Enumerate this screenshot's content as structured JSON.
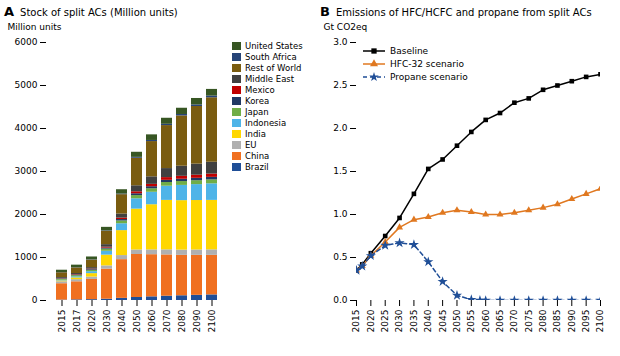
{
  "chart_data": [
    {
      "type": "bar",
      "title": "Stock of split ACs (Million units)",
      "ylabel": "Million units",
      "annotations": [
        "A"
      ],
      "stacked": true,
      "grid": false,
      "legend": "right",
      "categories": [
        "2015",
        "2017",
        "2020",
        "2030",
        "2040",
        "2050",
        "2060",
        "2070",
        "2080",
        "2090",
        "2100"
      ],
      "series": [
        {
          "name": "Brazil",
          "color": "#1f4e97",
          "values": [
            10,
            15,
            20,
            30,
            50,
            70,
            85,
            100,
            110,
            120,
            130
          ]
        },
        {
          "name": "China",
          "color": "#f07020",
          "values": [
            380,
            420,
            470,
            700,
            900,
            1000,
            980,
            960,
            940,
            930,
            920
          ]
        },
        {
          "name": "EU",
          "color": "#b0b0b0",
          "values": [
            45,
            50,
            55,
            75,
            95,
            105,
            112,
            118,
            122,
            125,
            128
          ]
        },
        {
          "name": "India",
          "color": "#ffd700",
          "values": [
            20,
            40,
            80,
            250,
            580,
            950,
            1050,
            1150,
            1150,
            1150,
            1150
          ]
        },
        {
          "name": "Indonesia",
          "color": "#4eb4e8",
          "values": [
            15,
            25,
            45,
            90,
            160,
            240,
            290,
            330,
            355,
            370,
            385
          ]
        },
        {
          "name": "Japan",
          "color": "#70ad47",
          "values": [
            25,
            28,
            32,
            50,
            65,
            75,
            82,
            86,
            89,
            91,
            93
          ]
        },
        {
          "name": "Korea",
          "color": "#203864",
          "values": [
            12,
            14,
            16,
            24,
            33,
            42,
            47,
            51,
            54,
            56,
            58
          ]
        },
        {
          "name": "Mexico",
          "color": "#c00000",
          "values": [
            8,
            10,
            12,
            20,
            33,
            46,
            55,
            63,
            68,
            72,
            76
          ]
        },
        {
          "name": "Middle East",
          "color": "#404040",
          "values": [
            20,
            25,
            35,
            60,
            95,
            140,
            175,
            210,
            235,
            258,
            275
          ]
        },
        {
          "name": "Rest of World",
          "color": "#7a5c10",
          "values": [
            110,
            130,
            175,
            310,
            450,
            640,
            820,
            1000,
            1170,
            1340,
            1500
          ]
        },
        {
          "name": "South Africa",
          "color": "#264478",
          "values": [
            4,
            5,
            7,
            10,
            15,
            21,
            26,
            30,
            33,
            36,
            39
          ]
        },
        {
          "name": "United States",
          "color": "#375623",
          "values": [
            55,
            60,
            65,
            82,
            100,
            118,
            130,
            140,
            145,
            150,
            155
          ]
        }
      ],
      "ylim": [
        0,
        6000
      ],
      "yticks": [
        0,
        1000,
        2000,
        3000,
        4000,
        5000,
        6000
      ]
    },
    {
      "type": "line",
      "title": "Emissions of HFC/HCFC and propane from split ACs",
      "ylabel": "Gt CO2eq",
      "annotations": [
        "B"
      ],
      "grid": false,
      "legend": "upper left",
      "xlim": [
        2015,
        2100
      ],
      "xticks": [
        2015,
        2020,
        2025,
        2030,
        2035,
        2040,
        2045,
        2050,
        2055,
        2060,
        2065,
        2070,
        2075,
        2080,
        2085,
        2090,
        2095,
        2100
      ],
      "ylim": [
        0.0,
        3.0
      ],
      "yticks": [
        {
          "value": 0.0,
          "label": "0.0"
        },
        {
          "value": 0.5,
          "label": "0.5"
        },
        {
          "value": 1.0,
          "label": "1.0"
        },
        {
          "value": 1.5,
          "label": "1.5"
        },
        {
          "value": 2.0,
          "label": "2.0"
        },
        {
          "value": 2.5,
          "label": "2.5"
        },
        {
          "value": 3.0,
          "label": "3.0"
        }
      ],
      "series": [
        {
          "name": "Baseline",
          "color": "black",
          "marker": "square",
          "line_style": "solid",
          "x": [
            2015,
            2017,
            2020,
            2025,
            2030,
            2035,
            2040,
            2045,
            2050,
            2055,
            2060,
            2065,
            2070,
            2075,
            2080,
            2085,
            2090,
            2095,
            2100
          ],
          "values": [
            0.35,
            0.42,
            0.55,
            0.75,
            0.96,
            1.24,
            1.53,
            1.64,
            1.8,
            1.96,
            2.1,
            2.18,
            2.3,
            2.35,
            2.45,
            2.5,
            2.55,
            2.6,
            2.63
          ]
        },
        {
          "name": "HFC-32 scenario",
          "color": "#e07820",
          "marker": "triangle",
          "line_style": "solid",
          "x": [
            2015,
            2017,
            2020,
            2025,
            2030,
            2035,
            2040,
            2045,
            2050,
            2055,
            2060,
            2065,
            2070,
            2075,
            2080,
            2085,
            2090,
            2095,
            2100
          ],
          "values": [
            0.35,
            0.4,
            0.52,
            0.68,
            0.85,
            0.94,
            0.97,
            1.02,
            1.05,
            1.03,
            1.0,
            1.0,
            1.02,
            1.05,
            1.08,
            1.12,
            1.18,
            1.24,
            1.3
          ]
        },
        {
          "name": "Propane scenario",
          "color": "#1f4e97",
          "marker": "star",
          "line_style": "dashed",
          "x": [
            2015,
            2017,
            2020,
            2025,
            2030,
            2035,
            2040,
            2045,
            2050,
            2055,
            2058,
            2060,
            2065,
            2070,
            2075,
            2080,
            2085,
            2090,
            2095,
            2100
          ],
          "values": [
            0.35,
            0.4,
            0.52,
            0.64,
            0.67,
            0.65,
            0.45,
            0.22,
            0.06,
            0.01,
            0.001,
            0.0,
            0.0,
            0.0,
            0.0,
            0.0,
            0.0,
            0.0,
            0.0,
            0.0
          ]
        }
      ]
    }
  ]
}
